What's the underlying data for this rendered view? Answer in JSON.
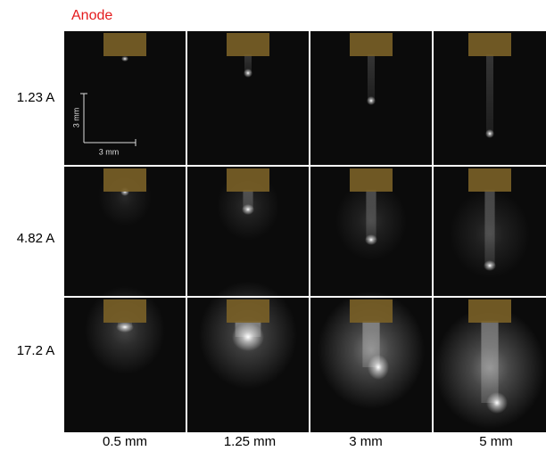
{
  "header": {
    "title": "Anode"
  },
  "rows": [
    {
      "label": "1.23 A"
    },
    {
      "label": "4.82 A"
    },
    {
      "label": "17.2 A"
    }
  ],
  "columns": [
    {
      "label": "0.5 mm"
    },
    {
      "label": "1.25 mm"
    },
    {
      "label": "3 mm"
    },
    {
      "label": "5 mm"
    }
  ],
  "scale_bar": {
    "vertical_label": "3 mm",
    "horizontal_label": "3 mm"
  }
}
